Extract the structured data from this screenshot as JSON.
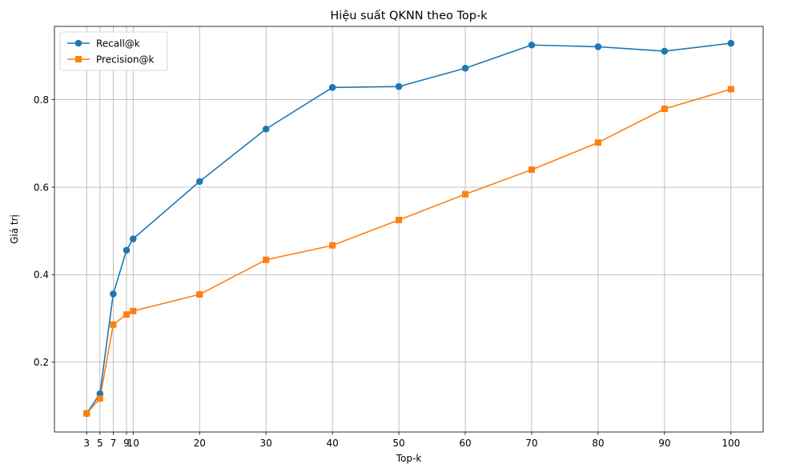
{
  "chart_data": {
    "type": "line",
    "title": "Hiệu suất QKNN theo Top-k",
    "xlabel": "Top-k",
    "ylabel": "Giá trị",
    "x": [
      3,
      5,
      7,
      9,
      10,
      20,
      30,
      40,
      50,
      60,
      70,
      80,
      90,
      100
    ],
    "x_ticks": [
      "3",
      "5",
      "7",
      "9",
      "10",
      "20",
      "30",
      "40",
      "50",
      "60",
      "70",
      "80",
      "90",
      "100"
    ],
    "y_ticks": [
      "0.2",
      "0.4",
      "0.6",
      "0.8"
    ],
    "xlim": [
      -1.85,
      104.85
    ],
    "ylim": [
      0.0405,
      0.9675
    ],
    "grid": true,
    "legend_position": "top-left",
    "series": [
      {
        "name": "Recall@k",
        "color": "#1f77b4",
        "marker": "circle",
        "values": [
          0.083,
          0.128,
          0.356,
          0.456,
          0.482,
          0.613,
          0.733,
          0.828,
          0.83,
          0.872,
          0.925,
          0.921,
          0.911,
          0.929
        ]
      },
      {
        "name": "Precision@k",
        "color": "#ff7f0e",
        "marker": "square",
        "values": [
          0.083,
          0.117,
          0.286,
          0.309,
          0.317,
          0.355,
          0.434,
          0.467,
          0.525,
          0.584,
          0.64,
          0.702,
          0.779,
          0.824
        ]
      }
    ]
  }
}
